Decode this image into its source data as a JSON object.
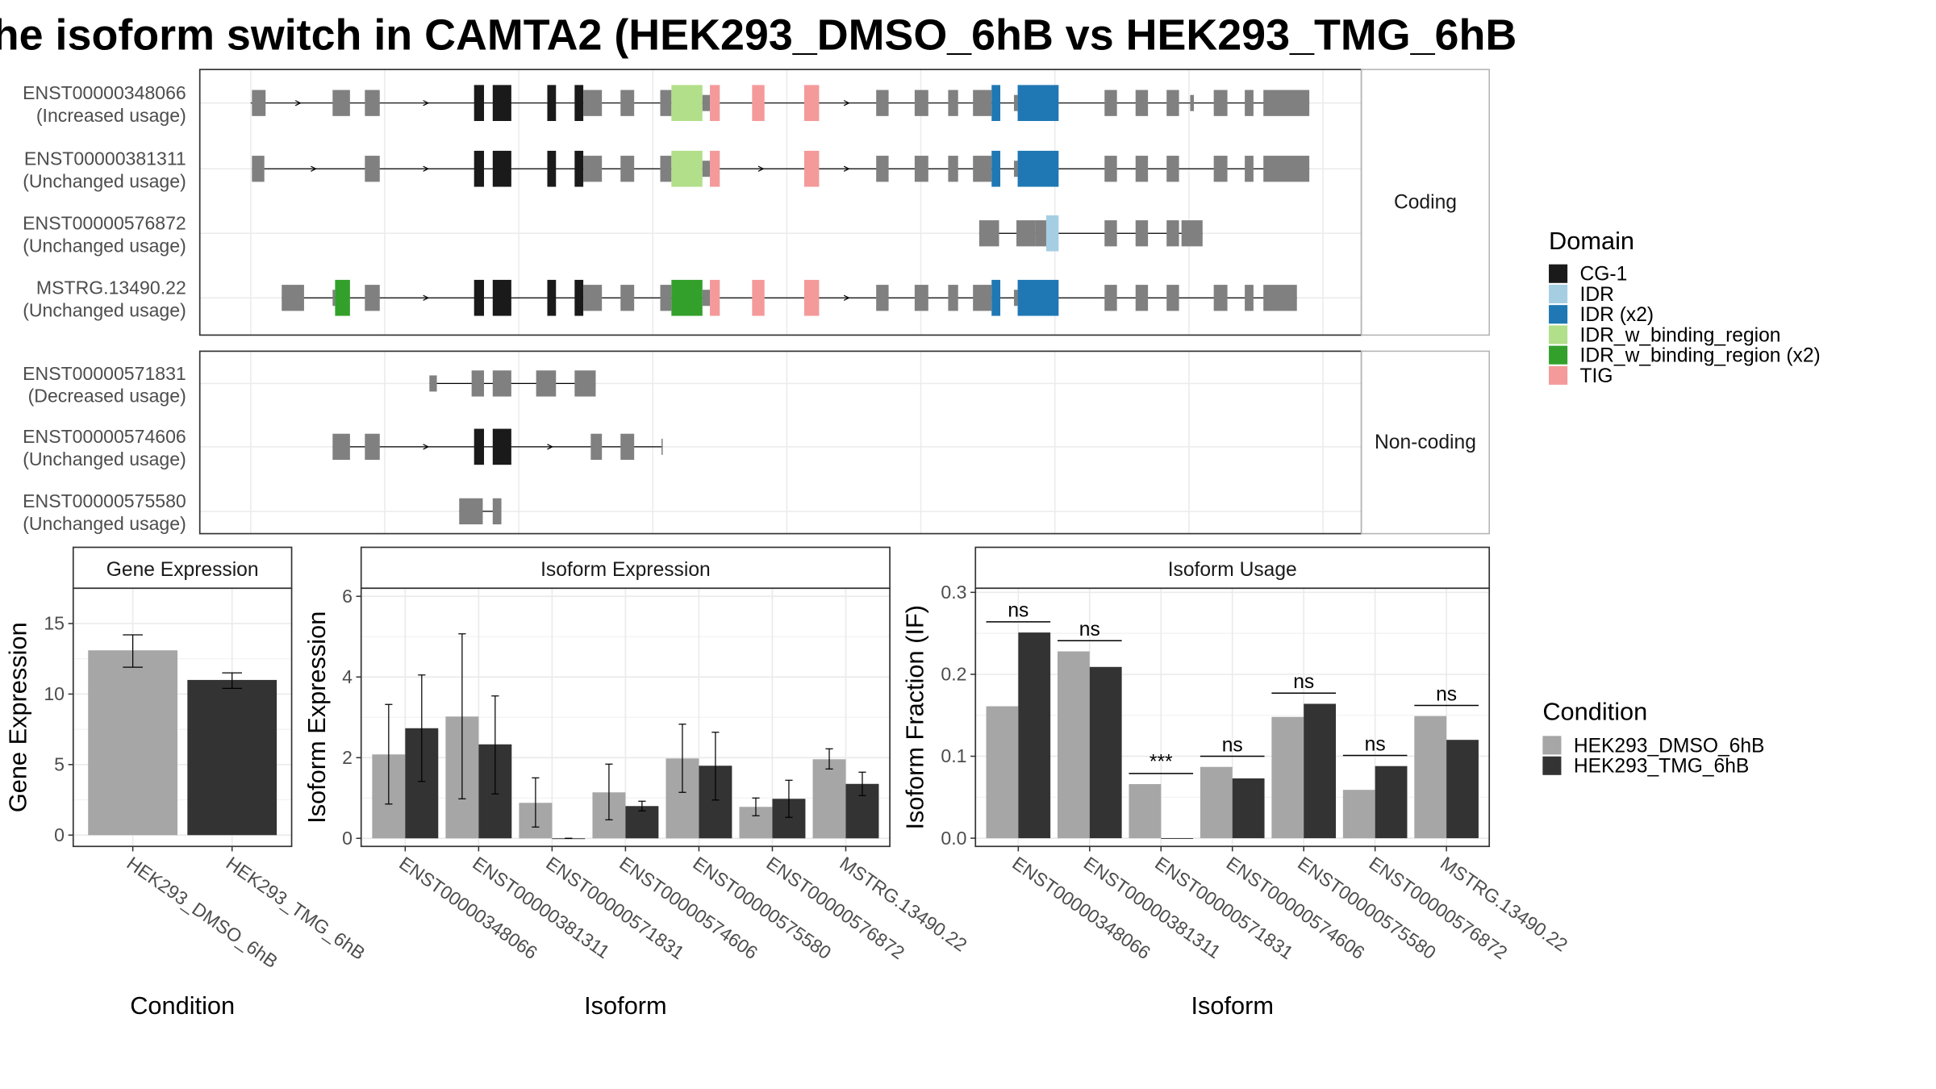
{
  "title": "he isoform switch in CAMTA2 (HEK293_DMSO_6hB vs HEK293_TMG_6hB",
  "colors": {
    "exon": "#808080",
    "CG-1": "#1a1a1a",
    "IDR": "#a6cee3",
    "IDR (x2)": "#1f78b4",
    "IDR_w_binding_region": "#b2df8a",
    "IDR_w_binding_region (x2)": "#33a02c",
    "TIG": "#f49a9a",
    "cond1": "#a6a6a6",
    "cond2": "#333333"
  },
  "structure": {
    "groups": [
      {
        "label": "Coding",
        "transcripts": [
          {
            "id": "ENST00000348066",
            "usage": "(Increased usage)",
            "span": [
              202,
              1055
            ],
            "exons": [
              [
                203,
                214,
                "exon"
              ],
              [
                268,
                282,
                "exon"
              ],
              [
                294,
                306,
                "exon"
              ],
              [
                382,
                390,
                "CG-1"
              ],
              [
                397,
                412,
                "CG-1"
              ],
              [
                441,
                448,
                "CG-1"
              ],
              [
                463,
                470,
                "CG-1"
              ],
              [
                470,
                485,
                "exon"
              ],
              [
                500,
                511,
                "exon"
              ],
              [
                532,
                541,
                "exon"
              ],
              [
                541,
                566,
                "IDR_w_binding_region"
              ],
              [
                566,
                572,
                "exon"
              ],
              [
                572,
                580,
                "TIG"
              ],
              [
                606,
                616,
                "TIG"
              ],
              [
                648,
                660,
                "TIG"
              ],
              [
                706,
                716,
                "exon"
              ],
              [
                737,
                748,
                "exon"
              ],
              [
                764,
                772,
                "exon"
              ],
              [
                784,
                799,
                "exon"
              ],
              [
                799,
                806,
                "IDR (x2)"
              ],
              [
                817,
                820,
                "exon"
              ],
              [
                820,
                853,
                "IDR (x2)"
              ],
              [
                890,
                900,
                "exon"
              ],
              [
                915,
                925,
                "exon"
              ],
              [
                940,
                950,
                "exon"
              ],
              [
                959,
                962,
                "exon"
              ],
              [
                978,
                989,
                "exon"
              ],
              [
                1003,
                1010,
                "exon"
              ],
              [
                1018,
                1055,
                "exon"
              ]
            ]
          },
          {
            "id": "ENST00000381311",
            "usage": "(Unchanged usage)",
            "span": [
              203,
              1055
            ],
            "exons": [
              [
                203,
                213,
                "exon"
              ],
              [
                294,
                306,
                "exon"
              ],
              [
                382,
                390,
                "CG-1"
              ],
              [
                397,
                412,
                "CG-1"
              ],
              [
                441,
                448,
                "CG-1"
              ],
              [
                463,
                470,
                "CG-1"
              ],
              [
                470,
                485,
                "exon"
              ],
              [
                500,
                511,
                "exon"
              ],
              [
                532,
                541,
                "exon"
              ],
              [
                541,
                566,
                "IDR_w_binding_region"
              ],
              [
                566,
                572,
                "exon"
              ],
              [
                572,
                580,
                "TIG"
              ],
              [
                648,
                660,
                "TIG"
              ],
              [
                706,
                716,
                "exon"
              ],
              [
                737,
                748,
                "exon"
              ],
              [
                764,
                772,
                "exon"
              ],
              [
                784,
                799,
                "exon"
              ],
              [
                799,
                806,
                "IDR (x2)"
              ],
              [
                817,
                820,
                "exon"
              ],
              [
                820,
                853,
                "IDR (x2)"
              ],
              [
                890,
                900,
                "exon"
              ],
              [
                915,
                925,
                "exon"
              ],
              [
                940,
                950,
                "exon"
              ],
              [
                978,
                989,
                "exon"
              ],
              [
                1003,
                1010,
                "exon"
              ],
              [
                1018,
                1055,
                "exon"
              ]
            ]
          },
          {
            "id": "ENST00000576872",
            "usage": "(Unchanged usage)",
            "span": [
              789,
              969
            ],
            "exons": [
              [
                789,
                805,
                "exon"
              ],
              [
                819,
                834,
                "exon"
              ],
              [
                834,
                843,
                "exon"
              ],
              [
                843,
                853,
                "IDR"
              ],
              [
                890,
                900,
                "exon"
              ],
              [
                915,
                925,
                "exon"
              ],
              [
                940,
                950,
                "exon"
              ],
              [
                952,
                969,
                "exon"
              ]
            ]
          },
          {
            "id": "MSTRG.13490.22",
            "usage": "(Unchanged usage)",
            "span": [
              227,
              1045
            ],
            "exons": [
              [
                227,
                245,
                "exon"
              ],
              [
                268,
                270,
                "exon"
              ],
              [
                270,
                282,
                "IDR_w_binding_region (x2)"
              ],
              [
                294,
                306,
                "exon"
              ],
              [
                382,
                390,
                "CG-1"
              ],
              [
                397,
                412,
                "CG-1"
              ],
              [
                441,
                448,
                "CG-1"
              ],
              [
                463,
                470,
                "CG-1"
              ],
              [
                470,
                485,
                "exon"
              ],
              [
                500,
                511,
                "exon"
              ],
              [
                532,
                541,
                "exon"
              ],
              [
                541,
                566,
                "IDR_w_binding_region (x2)"
              ],
              [
                566,
                572,
                "exon"
              ],
              [
                572,
                580,
                "TIG"
              ],
              [
                606,
                616,
                "TIG"
              ],
              [
                648,
                660,
                "TIG"
              ],
              [
                706,
                716,
                "exon"
              ],
              [
                737,
                748,
                "exon"
              ],
              [
                764,
                772,
                "exon"
              ],
              [
                784,
                799,
                "exon"
              ],
              [
                799,
                806,
                "IDR (x2)"
              ],
              [
                817,
                820,
                "exon"
              ],
              [
                820,
                853,
                "IDR (x2)"
              ],
              [
                890,
                900,
                "exon"
              ],
              [
                915,
                925,
                "exon"
              ],
              [
                940,
                950,
                "exon"
              ],
              [
                978,
                989,
                "exon"
              ],
              [
                1003,
                1010,
                "exon"
              ],
              [
                1018,
                1045,
                "exon"
              ]
            ]
          }
        ]
      },
      {
        "label": "Non-coding",
        "transcripts": [
          {
            "id": "ENST00000571831",
            "usage": "(Decreased usage)",
            "span": [
              346,
              480
            ],
            "exons": [
              [
                346,
                352,
                "exon"
              ],
              [
                380,
                390,
                "exon"
              ],
              [
                397,
                412,
                "exon"
              ],
              [
                432,
                448,
                "exon"
              ],
              [
                463,
                480,
                "exon"
              ]
            ]
          },
          {
            "id": "ENST00000574606",
            "usage": "(Unchanged usage)",
            "span": [
              268,
              534
            ],
            "exons": [
              [
                268,
                282,
                "exon"
              ],
              [
                294,
                306,
                "exon"
              ],
              [
                382,
                390,
                "CG-1"
              ],
              [
                397,
                412,
                "CG-1"
              ],
              [
                476,
                485,
                "exon"
              ],
              [
                500,
                511,
                "exon"
              ],
              [
                533,
                534,
                "exon"
              ]
            ]
          },
          {
            "id": "ENST00000575580",
            "usage": "(Unchanged usage)",
            "span": [
              370,
              404
            ],
            "exons": [
              [
                370,
                389,
                "exon"
              ],
              [
                397,
                404,
                "exon"
              ]
            ]
          }
        ]
      }
    ]
  },
  "legend_domain": {
    "title": "Domain",
    "items": [
      "CG-1",
      "IDR",
      "IDR (x2)",
      "IDR_w_binding_region",
      "IDR_w_binding_region (x2)",
      "TIG"
    ]
  },
  "legend_condition": {
    "title": "Condition",
    "items": [
      "HEK293_DMSO_6hB",
      "HEK293_TMG_6hB"
    ]
  },
  "chart_data": [
    {
      "type": "bar",
      "title": "Gene Expression",
      "xlabel": "Condition",
      "ylabel": "Gene Expression",
      "categories": [
        "HEK293_DMSO_6hB",
        "HEK293_TMG_6hB"
      ],
      "values": [
        13.1,
        11.0
      ],
      "error_low": [
        11.9,
        10.4
      ],
      "error_high": [
        14.2,
        11.5
      ],
      "ylim": [
        -0.8,
        17.5
      ],
      "yticks": [
        0,
        5,
        10,
        15
      ]
    },
    {
      "type": "bar",
      "title": "Isoform Expression",
      "xlabel": "Isoform",
      "ylabel": "Isoform Expression",
      "categories": [
        "ENST00000348066",
        "ENST00000381311",
        "ENST00000571831",
        "ENST00000574606",
        "ENST00000575580",
        "ENST00000576872",
        "MSTRG.13490.22"
      ],
      "series": [
        {
          "name": "HEK293_DMSO_6hB",
          "values": [
            2.08,
            3.02,
            0.88,
            1.14,
            1.98,
            0.78,
            1.96
          ],
          "error_low": [
            0.85,
            0.98,
            0.28,
            0.46,
            1.14,
            0.56,
            1.72
          ],
          "error_high": [
            3.32,
            5.07,
            1.5,
            1.84,
            2.83,
            1.0,
            2.22
          ]
        },
        {
          "name": "HEK293_TMG_6hB",
          "values": [
            2.73,
            2.33,
            0.0,
            0.8,
            1.8,
            0.98,
            1.35
          ],
          "error_low": [
            1.41,
            1.1,
            0.0,
            0.68,
            0.95,
            0.52,
            1.06
          ],
          "error_high": [
            4.05,
            3.53,
            0.0,
            0.92,
            2.63,
            1.44,
            1.64
          ]
        }
      ],
      "ylim": [
        -0.2,
        6.2
      ],
      "yticks": [
        0,
        2,
        4,
        6
      ]
    },
    {
      "type": "bar",
      "title": "Isoform Usage",
      "xlabel": "Isoform",
      "ylabel": "Isoform Fraction (IF)",
      "categories": [
        "ENST00000348066",
        "ENST00000381311",
        "ENST00000571831",
        "ENST00000574606",
        "ENST00000575580",
        "ENST00000576872",
        "MSTRG.13490.22"
      ],
      "series": [
        {
          "name": "HEK293_DMSO_6hB",
          "values": [
            0.161,
            0.228,
            0.066,
            0.087,
            0.148,
            0.059,
            0.149
          ]
        },
        {
          "name": "HEK293_TMG_6hB",
          "values": [
            0.251,
            0.209,
            0.0,
            0.073,
            0.164,
            0.088,
            0.12
          ]
        }
      ],
      "significance": [
        "ns",
        "ns",
        "***",
        "ns",
        "ns",
        "ns",
        "ns"
      ],
      "ylim": [
        -0.01,
        0.305
      ],
      "yticks": [
        0.0,
        0.1,
        0.2,
        0.3
      ],
      "ytick_labels": [
        "0.0",
        "0.1",
        "0.2",
        "0.3"
      ]
    }
  ]
}
